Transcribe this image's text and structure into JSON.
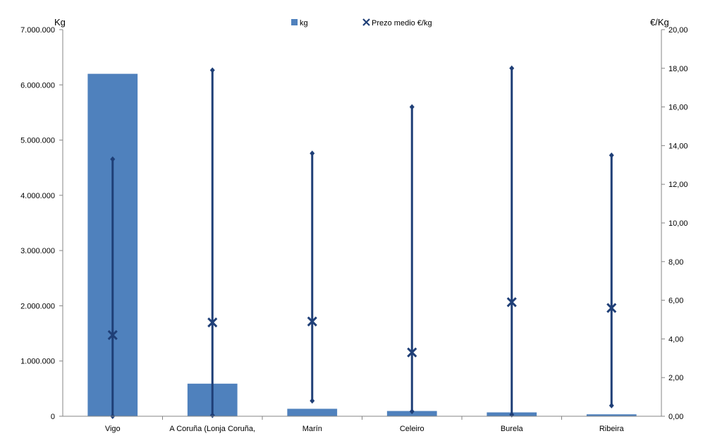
{
  "chart_data": {
    "type": "bar",
    "categories": [
      "Vigo",
      "A Coruña (Lonja Coruña,",
      "Marín",
      "Celeiro",
      "Burela",
      "Ribeira"
    ],
    "left_axis": {
      "unit_label": "Kg",
      "ylim": [
        0,
        7000000
      ],
      "ticks": [
        "0",
        "1.000.000",
        "2.000.000",
        "3.000.000",
        "4.000.000",
        "5.000.000",
        "6.000.000",
        "7.000.000"
      ],
      "tick_values": [
        0,
        1000000,
        2000000,
        3000000,
        4000000,
        5000000,
        6000000,
        7000000
      ]
    },
    "right_axis": {
      "unit_label": "€/Kg",
      "ylim": [
        0,
        20
      ],
      "ticks": [
        "0,00",
        "2,00",
        "4,00",
        "6,00",
        "8,00",
        "10,00",
        "12,00",
        "14,00",
        "16,00",
        "18,00",
        "20,00"
      ],
      "tick_values": [
        0,
        2,
        4,
        6,
        8,
        10,
        12,
        14,
        16,
        18,
        20
      ]
    },
    "series": [
      {
        "name": "kg",
        "kind": "bar",
        "axis": "left",
        "color": "#4f81bd",
        "values": [
          6200000,
          590000,
          135000,
          95000,
          70000,
          35000
        ]
      },
      {
        "name": "Prezo medio €/kg",
        "kind": "x-marker",
        "axis": "right",
        "color": "#1f3f77",
        "values": [
          4.2,
          4.85,
          4.9,
          3.3,
          5.9,
          5.6
        ],
        "high": [
          13.3,
          17.9,
          13.6,
          16.0,
          18.0,
          13.5
        ],
        "low": [
          0.0,
          0.05,
          0.8,
          0.25,
          0.08,
          0.55
        ]
      }
    ],
    "legend_position": "top-center",
    "grid": false
  }
}
